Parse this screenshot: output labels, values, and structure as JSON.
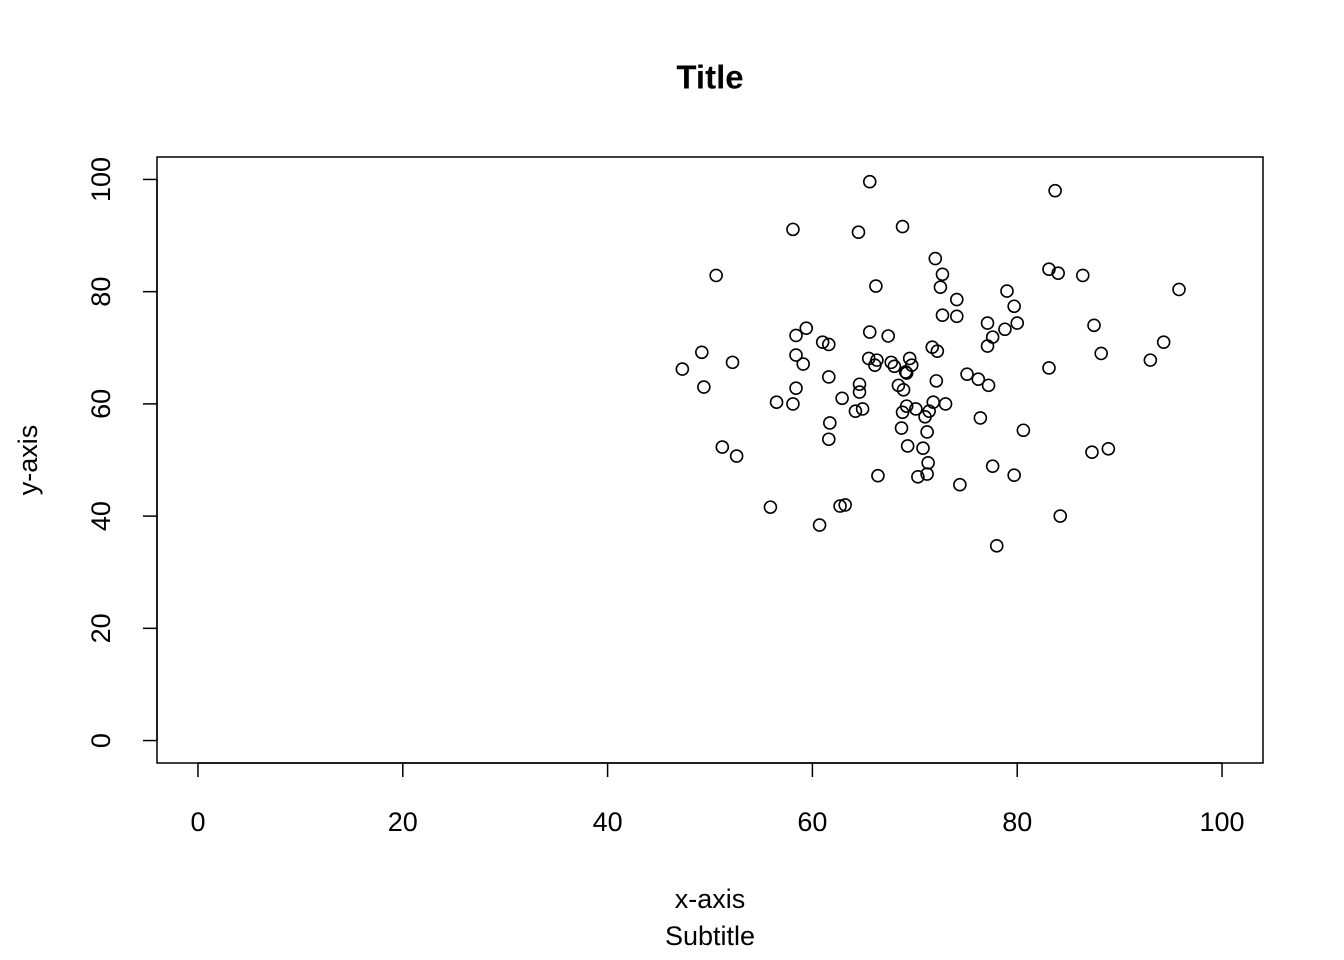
{
  "chart_data": {
    "type": "scatter",
    "title": "Title",
    "subtitle": "Subtitle",
    "x_label": "x-axis",
    "y_label": "y-axis",
    "x": [
      47.3,
      49.2,
      49.4,
      50.6,
      51.2,
      52.2,
      52.6,
      55.9,
      56.5,
      58.1,
      58.1,
      58.4,
      58.4,
      58.4,
      59.1,
      59.4,
      60.7,
      61.0,
      61.6,
      61.6,
      61.7,
      61.6,
      62.7,
      63.2,
      62.9,
      64.2,
      64.5,
      64.6,
      64.6,
      64.9,
      65.6,
      65.6,
      65.5,
      66.1,
      66.2,
      66.3,
      66.4,
      67.4,
      67.7,
      68.0,
      68.4,
      68.7,
      68.8,
      68.8,
      68.9,
      69.1,
      69.2,
      69.2,
      69.3,
      69.5,
      69.7,
      70.1,
      70.3,
      70.8,
      71.0,
      71.2,
      71.4,
      71.2,
      71.3,
      71.7,
      71.8,
      72.0,
      72.2,
      72.1,
      72.5,
      72.7,
      72.7,
      73.0,
      74.1,
      74.1,
      74.4,
      75.1,
      76.2,
      76.4,
      77.1,
      77.1,
      77.2,
      77.6,
      77.6,
      78.0,
      78.8,
      79.0,
      79.7,
      79.7,
      80.0,
      80.6,
      83.1,
      83.1,
      83.7,
      84.0,
      84.2,
      86.4,
      87.3,
      87.5,
      88.2,
      88.9,
      93.0,
      94.3,
      95.8
    ],
    "y": [
      66.2,
      69.2,
      63.0,
      82.9,
      52.3,
      67.4,
      50.7,
      41.6,
      60.3,
      91.1,
      60.0,
      72.2,
      68.7,
      62.8,
      67.1,
      73.5,
      38.4,
      71.0,
      70.6,
      64.8,
      56.6,
      53.7,
      41.8,
      42.0,
      61.0,
      58.7,
      90.6,
      63.5,
      62.1,
      59.1,
      99.6,
      72.8,
      68.1,
      66.9,
      81.0,
      67.8,
      47.2,
      72.1,
      67.4,
      66.7,
      63.3,
      55.7,
      91.6,
      58.5,
      62.5,
      65.7,
      65.5,
      59.6,
      52.5,
      68.1,
      66.9,
      59.1,
      47.0,
      52.1,
      57.7,
      55.0,
      58.7,
      47.5,
      49.5,
      70.1,
      60.3,
      85.9,
      69.4,
      64.1,
      80.8,
      83.1,
      75.8,
      60.0,
      78.6,
      75.6,
      45.6,
      65.3,
      64.4,
      57.5,
      74.4,
      70.3,
      63.3,
      71.9,
      48.9,
      34.7,
      73.3,
      80.1,
      77.4,
      47.3,
      74.4,
      55.3,
      84.0,
      66.4,
      98.0,
      83.3,
      40.0,
      82.9,
      51.4,
      74.0,
      69.0,
      52.0,
      67.8,
      71.0,
      80.4
    ],
    "xlim": [
      -4,
      104
    ],
    "ylim": [
      -4,
      104
    ],
    "xticks": [
      0,
      20,
      40,
      60,
      80,
      100
    ],
    "yticks": [
      0,
      20,
      40,
      60,
      80,
      100
    ],
    "color": "#000000",
    "grid": false
  }
}
